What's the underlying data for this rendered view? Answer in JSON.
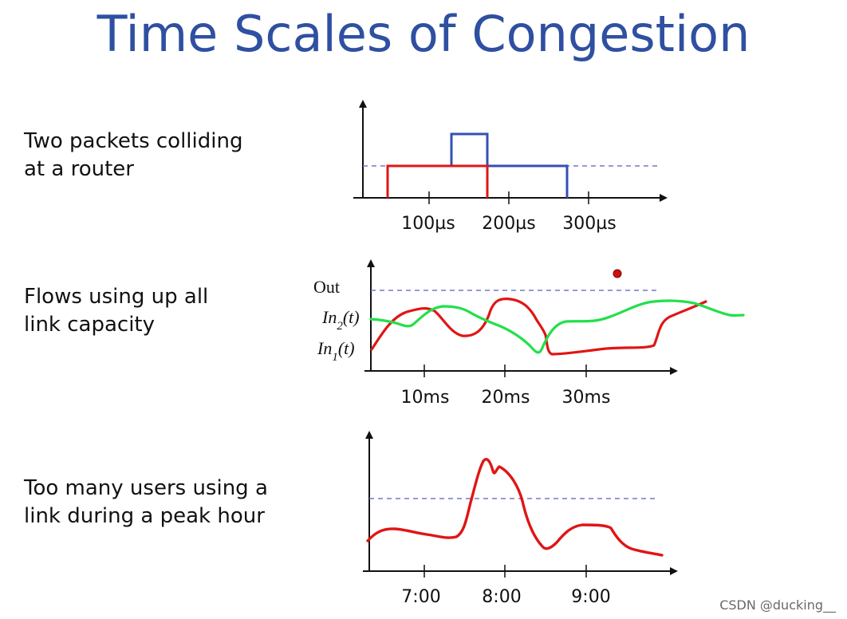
{
  "title": "Time Scales of Congestion",
  "rows": [
    {
      "label_lines": [
        "Two packets colliding",
        "at a router"
      ]
    },
    {
      "label_lines": [
        "Flows using up all",
        "link capacity"
      ]
    },
    {
      "label_lines": [
        "Too many users using a",
        "link during a peak hour"
      ]
    }
  ],
  "plot1": {
    "ticks": [
      "100µs",
      "200µs",
      "300µs"
    ]
  },
  "plot2": {
    "out_label": "Out",
    "in2_main": "In",
    "in2_sub": "2",
    "in2_tail": "(t)",
    "in1_main": "In",
    "in1_sub": "1",
    "in1_tail": "(t)",
    "ticks": [
      "10ms",
      "20ms",
      "30ms"
    ]
  },
  "plot3": {
    "ticks": [
      "7:00",
      "8:00",
      "9:00"
    ]
  },
  "colors": {
    "title": "#2f4fa1",
    "red": "#e01515",
    "blue": "#3350b4",
    "green": "#22e04a",
    "capacity": "#7278c9"
  },
  "watermark": "CSDN @ducking__"
}
